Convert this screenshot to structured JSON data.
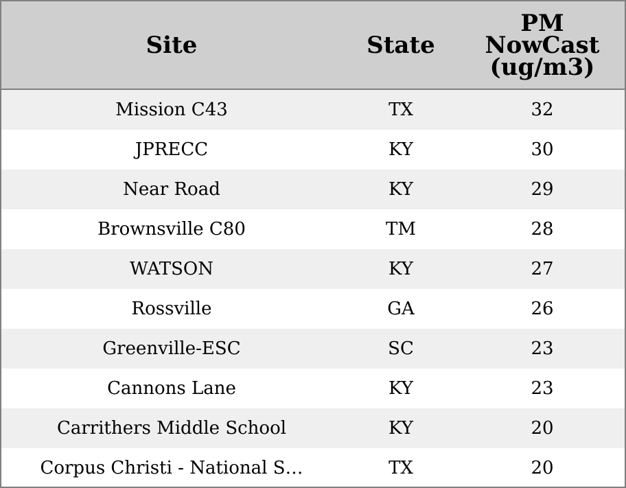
{
  "chart_data": {
    "type": "table",
    "columns": [
      "Site",
      "State",
      "PM\nNowCast\n(ug/m3)"
    ],
    "rows": [
      {
        "site": "Mission C43",
        "state": "TX",
        "pm": "32"
      },
      {
        "site": "JPRECC",
        "state": "KY",
        "pm": "30"
      },
      {
        "site": "Near Road",
        "state": "KY",
        "pm": "29"
      },
      {
        "site": "Brownsville C80",
        "state": "TM",
        "pm": "28"
      },
      {
        "site": "WATSON",
        "state": "KY",
        "pm": "27"
      },
      {
        "site": "Rossville",
        "state": "GA",
        "pm": "26"
      },
      {
        "site": "Greenville-ESC",
        "state": "SC",
        "pm": "23"
      },
      {
        "site": "Cannons Lane",
        "state": "KY",
        "pm": "23"
      },
      {
        "site": "Carrithers Middle School",
        "state": "KY",
        "pm": "20"
      },
      {
        "site": "Corpus Christi - National S…",
        "state": "TX",
        "pm": "20"
      }
    ]
  },
  "colors": {
    "header_bg": "#cfcfcf",
    "shaded_row_bg": "#efefef",
    "plain_row_bg": "#ffffff",
    "border": "#808080"
  }
}
